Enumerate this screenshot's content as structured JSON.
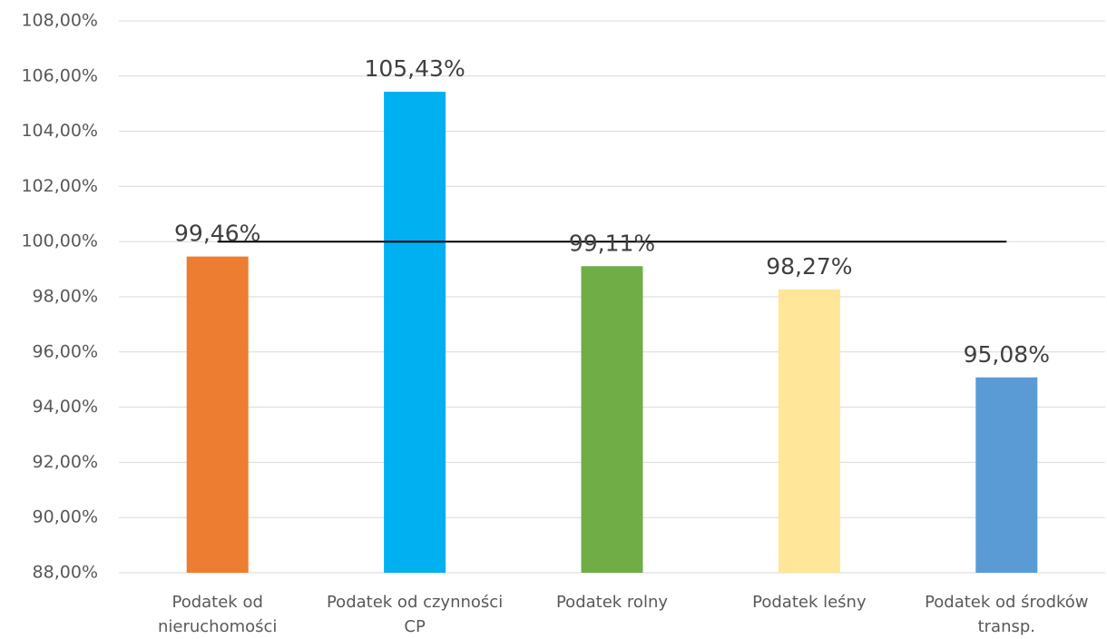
{
  "chart_data": {
    "type": "bar",
    "categories": [
      "Podatek od nieruchomości",
      "Podatek od czynności CP",
      "Podatek rolny",
      "Podatek leśny",
      "Podatek od środków transp."
    ],
    "values": [
      99.46,
      105.43,
      99.11,
      98.27,
      95.08
    ],
    "value_labels": [
      "99,46%",
      "105,43%",
      "99,11%",
      "98,27%",
      "95,08%"
    ],
    "colors": [
      "#ed7d31",
      "#00b0f0",
      "#70ad47",
      "#ffe699",
      "#5b9bd5"
    ],
    "ylim": [
      88,
      108
    ],
    "yticks": [
      {
        "value": 88,
        "label": "88,00%"
      },
      {
        "value": 90,
        "label": "90,00%"
      },
      {
        "value": 92,
        "label": "92,00%"
      },
      {
        "value": 94,
        "label": "94,00%"
      },
      {
        "value": 96,
        "label": "96,00%"
      },
      {
        "value": 98,
        "label": "98,00%"
      },
      {
        "value": 100,
        "label": "100,00%"
      },
      {
        "value": 102,
        "label": "102,00%"
      },
      {
        "value": 104,
        "label": "104,00%"
      },
      {
        "value": 106,
        "label": "106,00%"
      },
      {
        "value": 108,
        "label": "108,00%"
      }
    ],
    "grid": true,
    "reference_line": {
      "value": 100,
      "color": "#000000"
    }
  }
}
